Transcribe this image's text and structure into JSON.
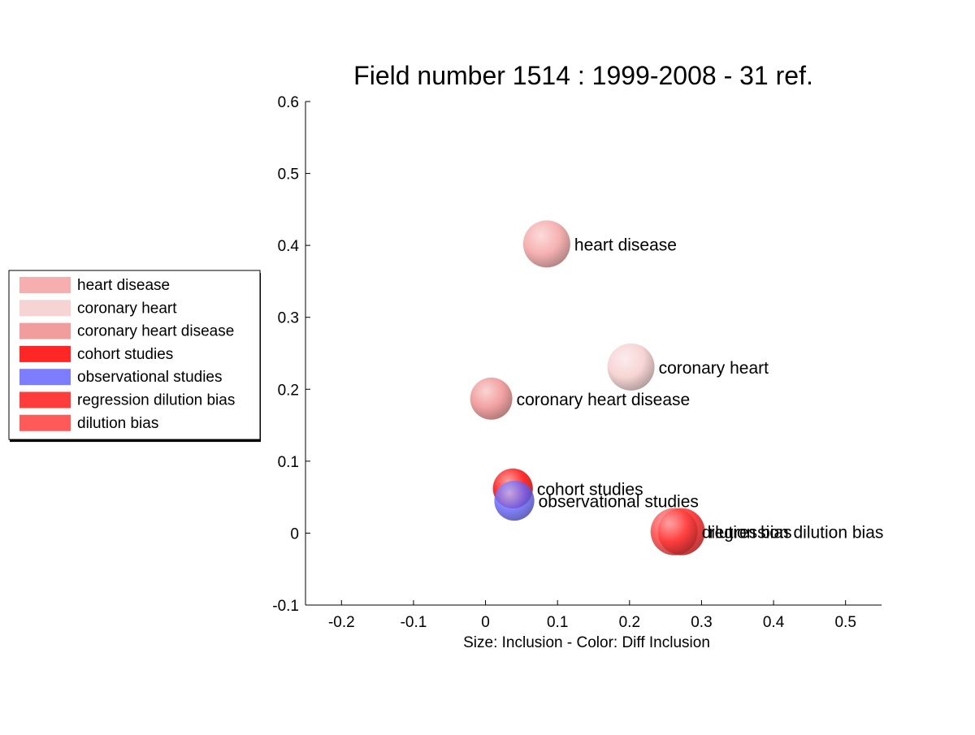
{
  "chart_data": {
    "type": "scatter",
    "title": "Field number 1514 : 1999-2008  - 31 ref.",
    "xlabel": "Size: Inclusion - Color: Diff Inclusion",
    "ylabel": "",
    "xlim": [
      -0.25,
      0.55
    ],
    "ylim": [
      -0.1,
      0.6
    ],
    "xticks": [
      "-0.2",
      "-0.1",
      "0",
      "0.1",
      "0.2",
      "0.3",
      "0.4",
      "0.5"
    ],
    "yticks": [
      "-0.1",
      "0",
      "0.1",
      "0.2",
      "0.3",
      "0.4",
      "0.5",
      "0.6"
    ],
    "grid": false,
    "legend_position": "left",
    "points": [
      {
        "label": "heart disease",
        "x": 0.085,
        "y": 0.402,
        "size": 1.0,
        "color": "#f4a0a0"
      },
      {
        "label": "coronary heart",
        "x": 0.202,
        "y": 0.231,
        "size": 1.0,
        "color": "#f6cccc"
      },
      {
        "label": "coronary heart disease",
        "x": 0.008,
        "y": 0.187,
        "size": 0.8,
        "color": "#f08c8c"
      },
      {
        "label": "cohort studies",
        "x": 0.038,
        "y": 0.062,
        "size": 0.72,
        "color": "#ff0000"
      },
      {
        "label": "observational studies",
        "x": 0.04,
        "y": 0.045,
        "size": 0.72,
        "color": "#6666ff"
      },
      {
        "label": "regression dilution bias",
        "x": 0.272,
        "y": 0.002,
        "size": 1.0,
        "color": "#ff1a1a"
      },
      {
        "label": "dilution bias",
        "x": 0.262,
        "y": 0.002,
        "size": 1.0,
        "color": "#ff3c3c"
      }
    ]
  }
}
